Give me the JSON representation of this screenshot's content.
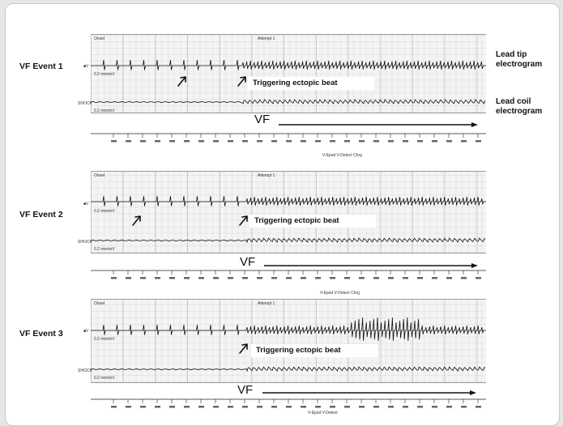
{
  "side_labels": {
    "lead_tip": "Lead tip electrogram",
    "lead_coil": "Lead coil electrogram"
  },
  "events": [
    {
      "label": "VF Event 1",
      "onset": "Onset",
      "attempt": "Attempt 1",
      "channel_v": "■V",
      "channel_shock": "SHOCK",
      "scale_v": "0.2 mm/mV",
      "scale_shock": "0.2 mm/mV",
      "trigger": "Triggering ectopic beat",
      "vf": "VF",
      "marker_sub": "V-Epsd    V-Detect   Chrg"
    },
    {
      "label": "VF Event 2",
      "onset": "Onset",
      "attempt": "Attempt 1",
      "channel_v": "■V",
      "channel_shock": "SHOCK",
      "scale_v": "0.2 mm/mV",
      "scale_shock": "0.2 mm/mV",
      "trigger": "Triggering ectopic beat",
      "vf": "VF",
      "marker_sub": "V-Epsd    V-Detect   Chrg"
    },
    {
      "label": "VF Event 3",
      "onset": "Onset",
      "attempt": "Attempt 1",
      "channel_v": "■V",
      "channel_shock": "SHOCK",
      "scale_v": "0.2 mm/mV",
      "scale_shock": "0.2 mm/mV",
      "trigger": "Triggering ectopic beat",
      "vf": "VF",
      "marker_sub": "V-Epsd    V-Detect"
    }
  ]
}
